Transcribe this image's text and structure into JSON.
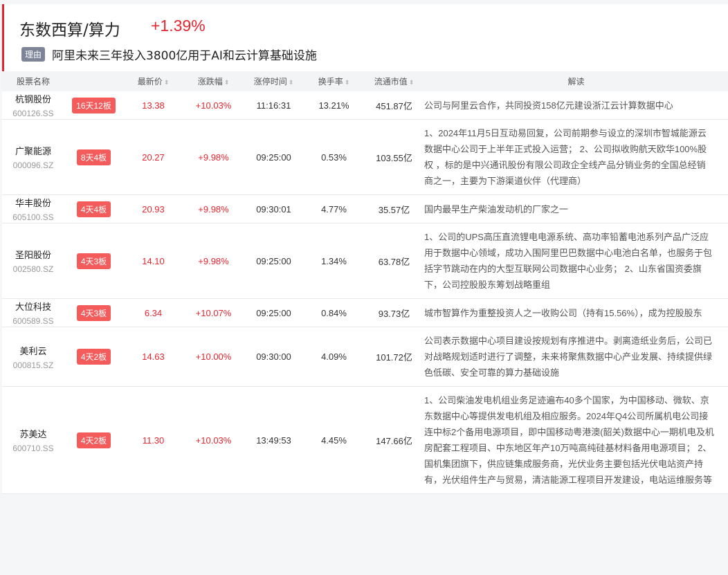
{
  "header": {
    "title": "东数西算/算力",
    "change": "+1.39%",
    "reason_tag": "理由",
    "reason": "阿里未来三年投入3800亿用于AI和云计算基础设施"
  },
  "columns": [
    "股票名称",
    "最新价",
    "涨跌幅",
    "涨停时间",
    "换手率",
    "流通市值",
    "解读"
  ],
  "colors": {
    "up": "#e5262f",
    "badge": "#f45b5b",
    "accent": "#e5262f"
  },
  "rows": [
    {
      "name": "杭钢股份",
      "code": "600126.SS",
      "badge": "16天12板",
      "price": "13.38",
      "change": "+10.03%",
      "time": "11:16:31",
      "turnover": "13.21%",
      "cap": "451.87亿",
      "desc": "公司与阿里云合作，共同投资158亿元建设浙江云计算数据中心"
    },
    {
      "name": "广聚能源",
      "code": "000096.SZ",
      "badge": "8天4板",
      "price": "20.27",
      "change": "+9.98%",
      "time": "09:25:00",
      "turnover": "0.53%",
      "cap": "103.55亿",
      "desc": "1、2024年11月5日互动易回复，公司前期参与设立的深圳市智城能源云数据中心公司于上半年正式投入运营； 2、公司拟收购航天欧华100%股权 ，标的是中兴通讯股份有限公司政企全线产品分销业务的全国总经销商之一，主要为下游渠道伙伴（代理商）"
    },
    {
      "name": "华丰股份",
      "code": "605100.SS",
      "badge": "4天4板",
      "price": "20.93",
      "change": "+9.98%",
      "time": "09:30:01",
      "turnover": "4.77%",
      "cap": "35.57亿",
      "desc": "国内最早生产柴油发动机的厂家之一"
    },
    {
      "name": "圣阳股份",
      "code": "002580.SZ",
      "badge": "4天3板",
      "price": "14.10",
      "change": "+9.98%",
      "time": "09:25:00",
      "turnover": "1.34%",
      "cap": "63.78亿",
      "desc": "1、公司的UPS高压直流锂电电源系统、高功率铅蓄电池系列产品广泛应用于数据中心领域，成功入围阿里巴巴数据中心电池白名单，也服务于包括字节跳动在内的大型互联网公司数据中心业务； 2、山东省国资委旗下，公司控股股东筹划战略重组"
    },
    {
      "name": "大位科技",
      "code": "600589.SS",
      "badge": "4天3板",
      "price": "6.34",
      "change": "+10.07%",
      "time": "09:25:00",
      "turnover": "0.84%",
      "cap": "93.73亿",
      "desc": "城市智算作为重整投资人之一收购公司（持有15.56%），成为控股股东"
    },
    {
      "name": "美利云",
      "code": "000815.SZ",
      "badge": "4天2板",
      "price": "14.63",
      "change": "+10.00%",
      "time": "09:30:00",
      "turnover": "4.09%",
      "cap": "101.72亿",
      "desc": "公司表示数据中心项目建设按规划有序推进中。剥离造纸业务后，公司已对战略规划适时进行了调整，未来将聚焦数据中心产业发展、持续提供绿色低碳、安全可靠的算力基础设施"
    },
    {
      "name": "苏美达",
      "code": "600710.SS",
      "badge": "4天2板",
      "price": "11.30",
      "change": "+10.03%",
      "time": "13:49:53",
      "turnover": "4.45%",
      "cap": "147.66亿",
      "desc": "1、公司柴油发电机组业务足迹遍布40多个国家，为中国移动、微软、京东数据中心等提供发电机组及相应服务。2024年Q4公司所属机电公司接连中标2个备用电源项目，即中国移动粤港澳(韶关)数据中心一期机电及机房配套工程项目、中东地区年产10万吨高纯硅基材料备用电源项目； 2、国机集团旗下，供应链集成服务商，光伏业务主要包括光伏电站资产持有，光伏组件生产与贸易，清洁能源工程项目开发建设，电站运维服务等"
    }
  ]
}
